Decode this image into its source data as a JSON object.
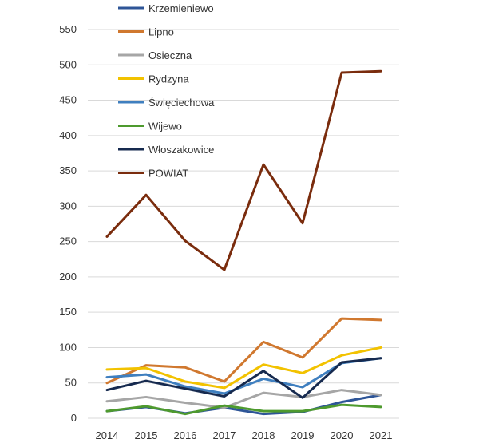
{
  "chart_data": {
    "type": "line",
    "categories": [
      "2014",
      "2015",
      "2016",
      "2017",
      "2018",
      "2019",
      "2020",
      "2021"
    ],
    "ylim": [
      0,
      550
    ],
    "yticks": [
      0,
      50,
      100,
      150,
      200,
      250,
      300,
      350,
      400,
      450,
      500,
      550
    ],
    "grid": true,
    "legend_position": "top",
    "series": [
      {
        "name": "Krzemieniewo",
        "color": "#2e5597",
        "values": [
          10,
          16,
          7,
          15,
          6,
          9,
          23,
          33
        ]
      },
      {
        "name": "Lipno",
        "color": "#d0782f",
        "values": [
          50,
          75,
          72,
          52,
          108,
          86,
          141,
          139
        ]
      },
      {
        "name": "Osieczna",
        "color": "#a6a6a6",
        "values": [
          24,
          30,
          22,
          15,
          36,
          30,
          40,
          33
        ]
      },
      {
        "name": "Rydzyna",
        "color": "#f2c200",
        "values": [
          69,
          71,
          52,
          43,
          76,
          64,
          89,
          100
        ]
      },
      {
        "name": "Święciechowa",
        "color": "#3f7fbf",
        "values": [
          58,
          62,
          45,
          35,
          56,
          44,
          78,
          85
        ]
      },
      {
        "name": "Wijewo",
        "color": "#4e9a2e",
        "values": [
          10,
          17,
          6,
          18,
          10,
          10,
          19,
          16
        ]
      },
      {
        "name": "Włoszakowice",
        "color": "#162a4f",
        "values": [
          40,
          53,
          42,
          31,
          67,
          29,
          79,
          85
        ]
      },
      {
        "name": "POWIAT",
        "color": "#7a2c0d",
        "values": [
          257,
          316,
          251,
          210,
          359,
          276,
          489,
          491
        ]
      }
    ]
  }
}
